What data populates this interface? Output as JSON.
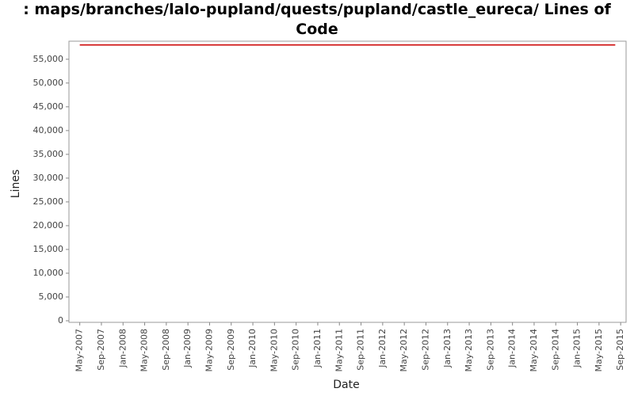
{
  "chart_data": {
    "type": "line",
    "title": ": maps/branches/lalo-pupland/quests/pupland/castle_eureca/ Lines of Code",
    "xlabel": "Date",
    "ylabel": "Lines",
    "x": [
      "2007-05",
      "2015-08"
    ],
    "series": [
      {
        "name": "Lines",
        "color": "#cc0000",
        "values": [
          58000,
          58000
        ]
      }
    ],
    "xlim": [
      "2007-03",
      "2015-10"
    ],
    "xticks": [
      {
        "value": "2007-05",
        "label": "May-2007"
      },
      {
        "value": "2007-09",
        "label": "Sep-2007"
      },
      {
        "value": "2008-01",
        "label": "Jan-2008"
      },
      {
        "value": "2008-05",
        "label": "May-2008"
      },
      {
        "value": "2008-09",
        "label": "Sep-2008"
      },
      {
        "value": "2009-01",
        "label": "Jan-2009"
      },
      {
        "value": "2009-05",
        "label": "May-2009"
      },
      {
        "value": "2009-09",
        "label": "Sep-2009"
      },
      {
        "value": "2010-01",
        "label": "Jan-2010"
      },
      {
        "value": "2010-05",
        "label": "May-2010"
      },
      {
        "value": "2010-09",
        "label": "Sep-2010"
      },
      {
        "value": "2011-01",
        "label": "Jan-2011"
      },
      {
        "value": "2011-05",
        "label": "May-2011"
      },
      {
        "value": "2011-09",
        "label": "Sep-2011"
      },
      {
        "value": "2012-01",
        "label": "Jan-2012"
      },
      {
        "value": "2012-05",
        "label": "May-2012"
      },
      {
        "value": "2012-09",
        "label": "Sep-2012"
      },
      {
        "value": "2013-01",
        "label": "Jan-2013"
      },
      {
        "value": "2013-05",
        "label": "May-2013"
      },
      {
        "value": "2013-09",
        "label": "Sep-2013"
      },
      {
        "value": "2014-01",
        "label": "Jan-2014"
      },
      {
        "value": "2014-05",
        "label": "May-2014"
      },
      {
        "value": "2014-09",
        "label": "Sep-2014"
      },
      {
        "value": "2015-01",
        "label": "Jan-2015"
      },
      {
        "value": "2015-05",
        "label": "May-2015"
      },
      {
        "value": "2015-09",
        "label": "Sep-2015"
      }
    ],
    "ylim": [
      0,
      58800
    ],
    "yticks": [
      0,
      {
        "value": 5000,
        "label": "5,000"
      },
      {
        "value": 10000,
        "label": "10,000"
      },
      {
        "value": 15000,
        "label": "15,000"
      },
      {
        "value": 20000,
        "label": "20,000"
      },
      {
        "value": 25000,
        "label": "25,000"
      },
      {
        "value": 30000,
        "label": "30,000"
      },
      {
        "value": 35000,
        "label": "35,000"
      },
      {
        "value": 40000,
        "label": "40,000"
      },
      {
        "value": 45000,
        "label": "45,000"
      },
      {
        "value": 50000,
        "label": "50,000"
      },
      {
        "value": 55000,
        "label": "55,000"
      }
    ],
    "grid": false
  }
}
